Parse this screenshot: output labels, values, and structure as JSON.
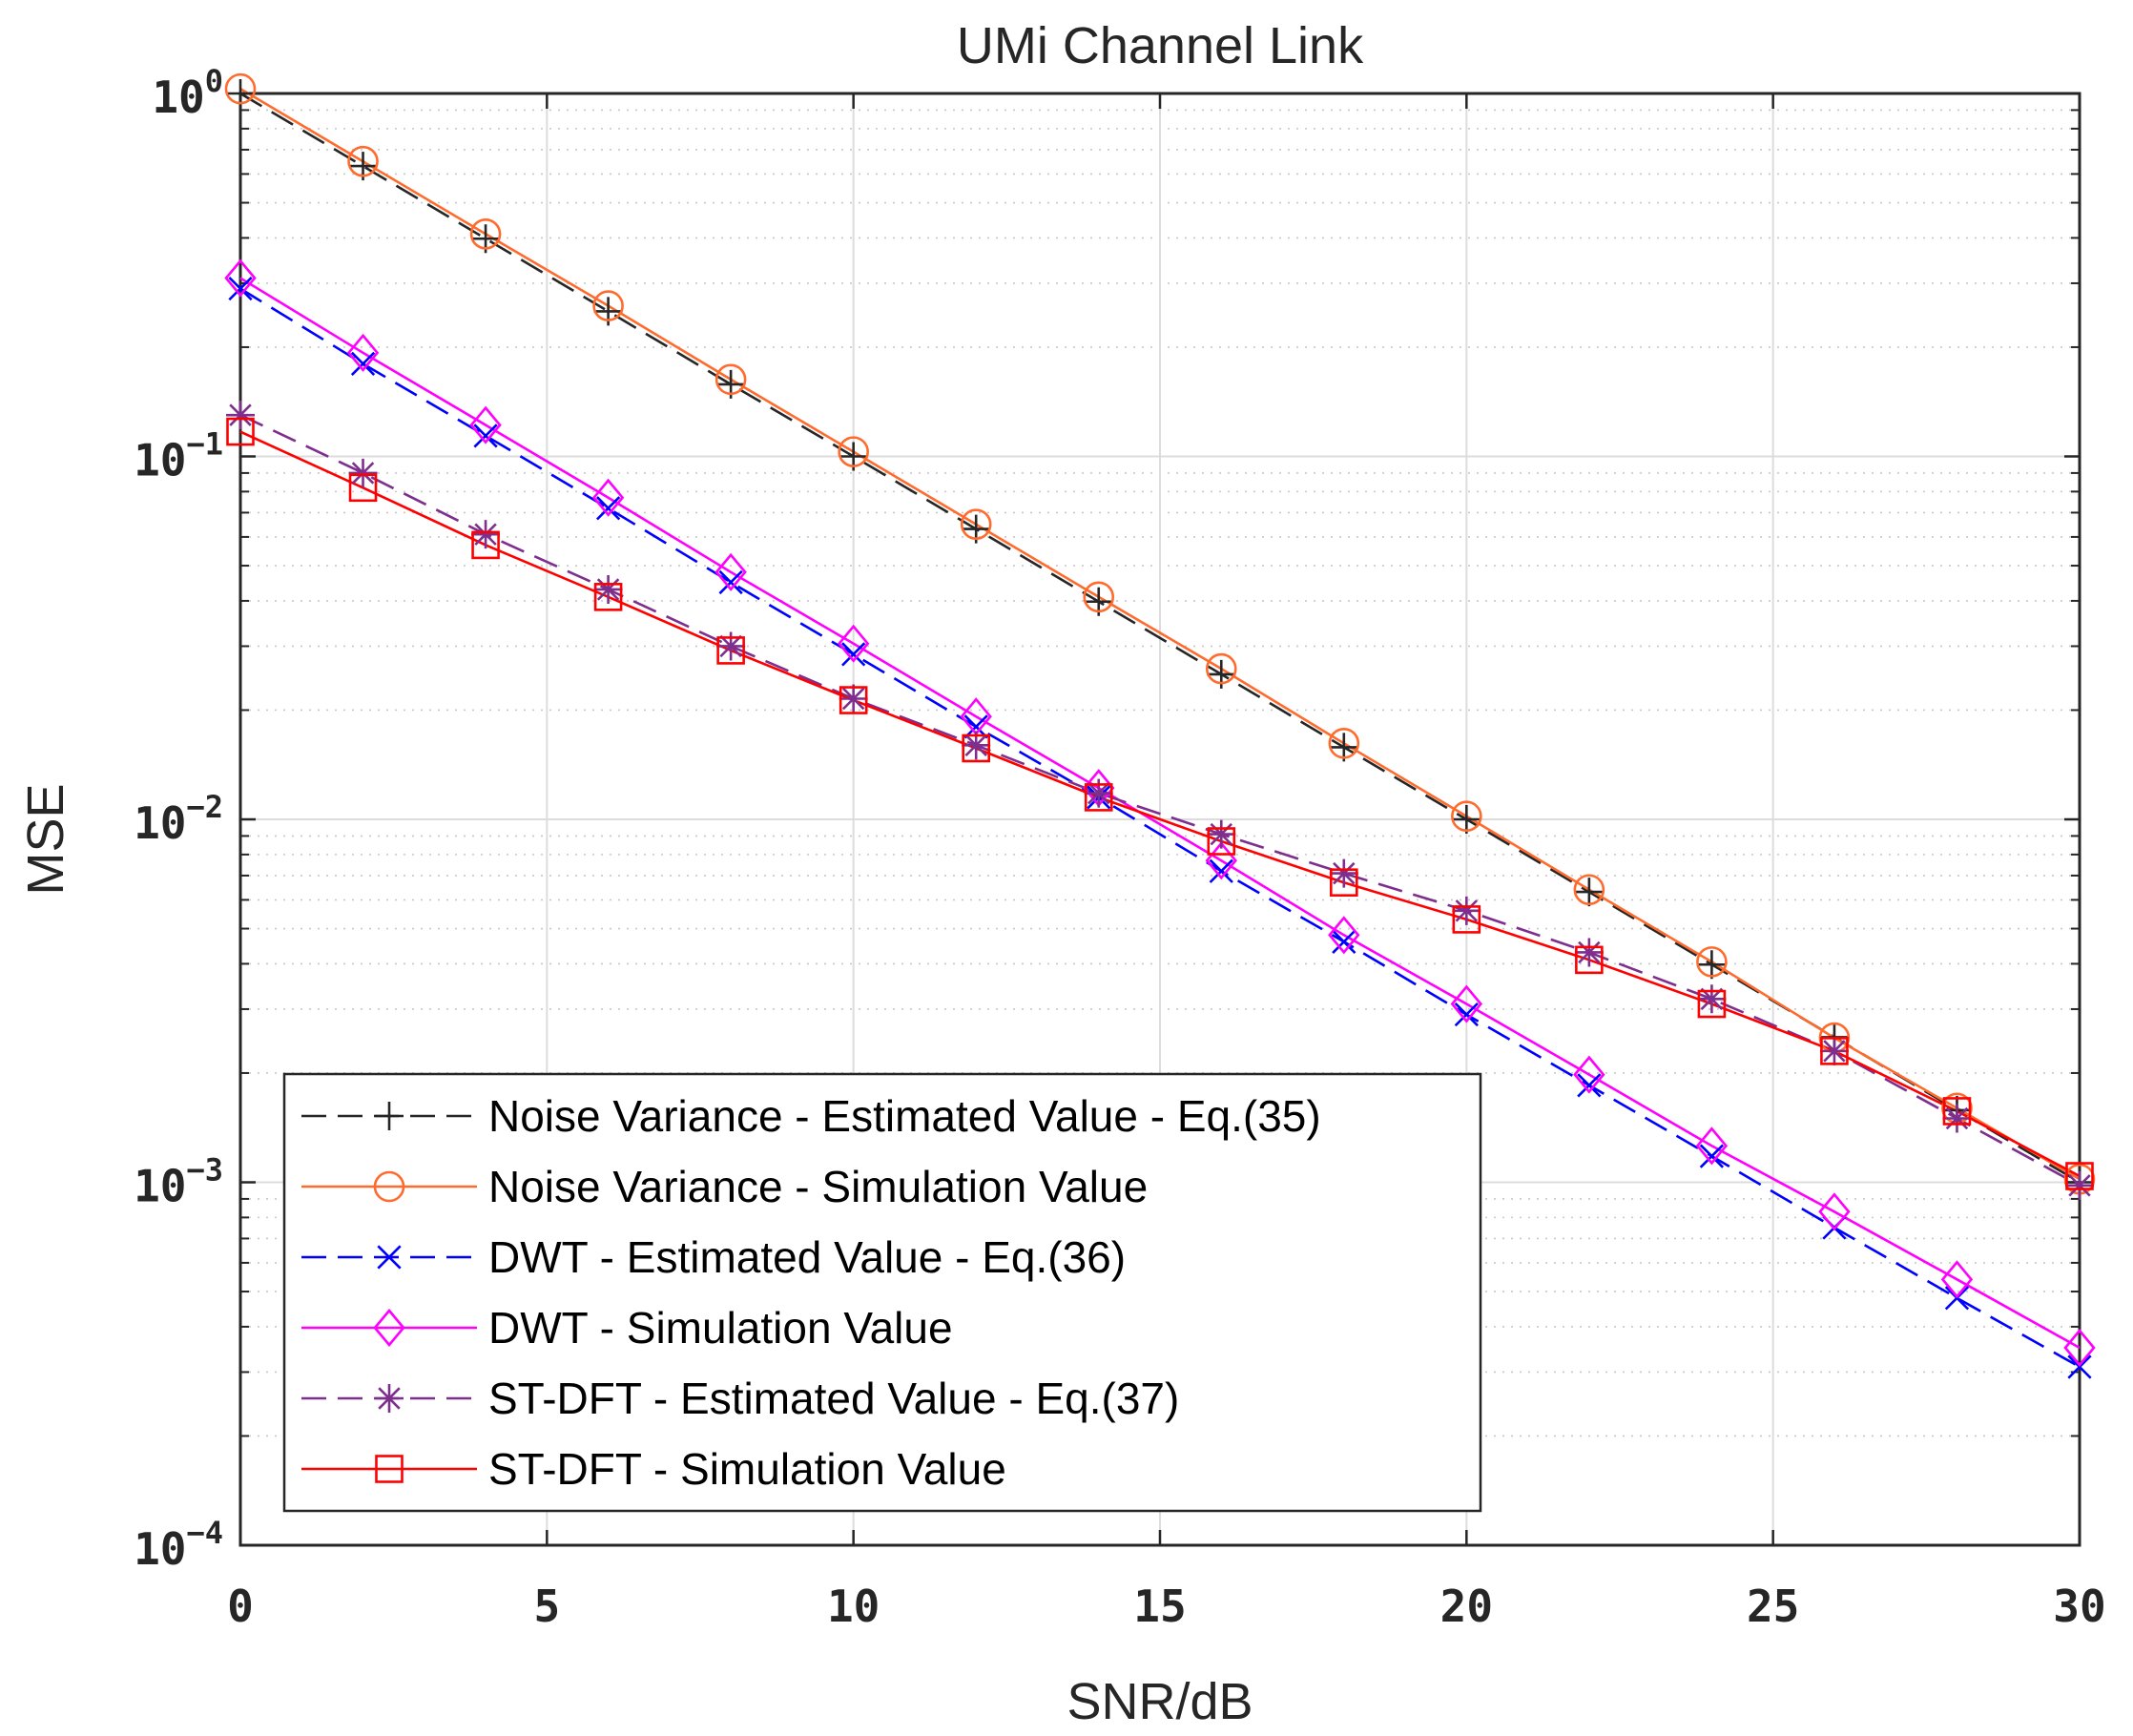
{
  "chart_data": {
    "type": "line",
    "title": "UMi Channel Link",
    "xlabel": "SNR/dB",
    "ylabel": "MSE",
    "xlim": [
      0,
      30
    ],
    "ylim": [
      0.0001,
      1
    ],
    "yscale": "log",
    "grid": true,
    "minor_grid": true,
    "legend_position": "bottom-left",
    "x_ticks": [
      0,
      5,
      10,
      15,
      20,
      25,
      30
    ],
    "x_tick_labels": [
      "0",
      "5",
      "10",
      "15",
      "20",
      "25",
      "30"
    ],
    "y_ticks": [
      1,
      0.1,
      0.01,
      0.001,
      0.0001
    ],
    "y_tick_labels": [
      {
        "base": "10",
        "exp": "0"
      },
      {
        "base": "10",
        "exp": "−1"
      },
      {
        "base": "10",
        "exp": "−2"
      },
      {
        "base": "10",
        "exp": "−3"
      },
      {
        "base": "10",
        "exp": "−4"
      }
    ],
    "x": [
      0,
      2,
      4,
      6,
      8,
      10,
      12,
      14,
      16,
      18,
      20,
      22,
      24,
      26,
      28,
      30
    ],
    "series": [
      {
        "name": "Noise Variance - Estimated Value - Eq.(35)",
        "color": "#262626",
        "dash": "dashed",
        "marker": "plus",
        "values": [
          1.0,
          0.631,
          0.398,
          0.251,
          0.158,
          0.1,
          0.0631,
          0.0398,
          0.0251,
          0.0158,
          0.01,
          0.00631,
          0.00398,
          0.00251,
          0.00158,
          0.001
        ]
      },
      {
        "name": "Noise Variance - Simulation Value",
        "color": "#ff6b2d",
        "dash": "solid",
        "marker": "circle",
        "values": [
          1.03,
          0.65,
          0.41,
          0.26,
          0.163,
          0.103,
          0.065,
          0.041,
          0.026,
          0.0162,
          0.0102,
          0.0064,
          0.00405,
          0.0025,
          0.0016,
          0.00102
        ]
      },
      {
        "name": "DWT - Estimated Value - Eq.(36)",
        "color": "#0000ff",
        "dash": "dashed",
        "marker": "x",
        "values": [
          0.29,
          0.18,
          0.114,
          0.072,
          0.045,
          0.0285,
          0.018,
          0.0115,
          0.0072,
          0.0046,
          0.0029,
          0.00185,
          0.00118,
          0.00075,
          0.00048,
          0.00031
        ]
      },
      {
        "name": "DWT - Simulation Value",
        "color": "#ff00ff",
        "dash": "solid",
        "marker": "diamond",
        "values": [
          0.31,
          0.193,
          0.122,
          0.077,
          0.048,
          0.0305,
          0.0192,
          0.0122,
          0.0077,
          0.0048,
          0.0031,
          0.00198,
          0.00126,
          0.00083,
          0.00054,
          0.00035
        ]
      },
      {
        "name": "ST-DFT - Estimated Value - Eq.(37)",
        "color": "#7e2f8e",
        "dash": "dashed",
        "marker": "asterisk",
        "values": [
          0.13,
          0.09,
          0.061,
          0.043,
          0.03,
          0.0215,
          0.016,
          0.0118,
          0.0091,
          0.0071,
          0.0056,
          0.0043,
          0.0032,
          0.0023,
          0.0015,
          0.00098
        ]
      },
      {
        "name": "ST-DFT - Simulation Value",
        "color": "#ff0000",
        "dash": "solid",
        "marker": "square",
        "values": [
          0.117,
          0.082,
          0.057,
          0.041,
          0.0292,
          0.0213,
          0.0157,
          0.0115,
          0.0087,
          0.0067,
          0.0053,
          0.0041,
          0.0031,
          0.0023,
          0.00157,
          0.00104
        ]
      }
    ]
  }
}
